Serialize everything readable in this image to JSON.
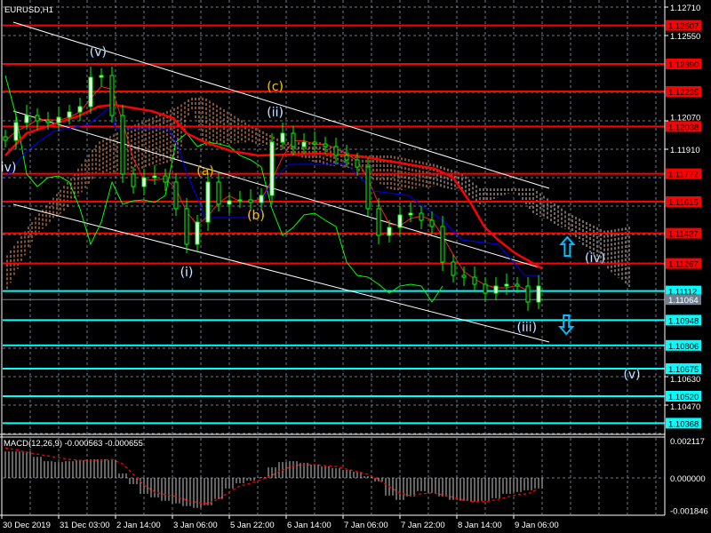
{
  "header": {
    "symbol_title": "EURUSD,H1"
  },
  "macd": {
    "label": "MACD(12,26,9) -0.000563 -0.000655"
  },
  "colors": {
    "background": "#000000",
    "resistance": "#ff0000",
    "support": "#00ffff",
    "current_price": "#708090",
    "bull_candle": "#ffffff",
    "candle_outline": "#00ff00",
    "moving_average": "#ff0000",
    "kijun": "#0000ff",
    "chikou": "#00ff00",
    "cloud": "#ffa060",
    "trendline": "#ffffff",
    "arrow": "#00bfff",
    "wave_white": "#ffffff",
    "wave_yellow": "#ffd700"
  },
  "chart_data": {
    "type": "line",
    "title": "EURUSD,H1",
    "price_axis": {
      "range": [
        1.1031,
        1.1271
      ],
      "ticks": [
        "1.12710",
        "1.12550",
        "1.12070",
        "1.11910",
        "1.10630",
        "1.10470"
      ]
    },
    "time_axis": {
      "ticks": [
        "30 Dec 2019",
        "31 Dec 03:00",
        "2 Jan 14:00",
        "3 Jan 06:00",
        "5 Jan 22:00",
        "6 Jan 14:00",
        "7 Jan 06:00",
        "7 Jan 22:00",
        "8 Jan 14:00",
        "9 Jan 06:00"
      ]
    },
    "grid": true,
    "closes": [
      1.1196,
      1.1206,
      1.121,
      1.1207,
      1.1206,
      1.1209,
      1.1212,
      1.1215,
      1.12315,
      1.12325,
      1.121,
      1.1177,
      1.117,
      1.1175,
      1.1176,
      1.11725,
      1.11575,
      1.11375,
      1.115,
      1.11725,
      1.116,
      1.1162,
      1.11625,
      1.1161,
      1.1165,
      1.1195,
      1.12,
      1.11925,
      1.1195,
      1.1194,
      1.11925,
      1.11875,
      1.1185,
      1.1181,
      1.11575,
      1.11425,
      1.1147,
      1.1154,
      1.1155,
      1.1151,
      1.11475,
      1.11275,
      1.112,
      1.1119,
      1.1115,
      1.111,
      1.1114,
      1.1115,
      1.1114,
      1.1105,
      1.1114
    ],
    "resistance_levels": [
      "1.12607",
      "1.12390",
      "1.12235",
      "1.12038",
      "1.11772",
      "1.11615",
      "1.11437",
      "1.11267"
    ],
    "support_levels": [
      "1.11112",
      "1.10948",
      "1.10806",
      "1.10675",
      "1.10520",
      "1.10368"
    ],
    "current_price": "1.11064",
    "moving_average": [
      [
        0,
        1.11875
      ],
      [
        2,
        1.12
      ],
      [
        4.5,
        1.1205
      ],
      [
        7,
        1.121
      ],
      [
        8.7,
        1.1215
      ],
      [
        10.2,
        1.1216
      ],
      [
        13.7,
        1.12125
      ],
      [
        15.75,
        1.12085
      ],
      [
        17,
        1.12
      ],
      [
        18.7,
        1.1195
      ],
      [
        21.2,
        1.119
      ],
      [
        23.7,
        1.11875
      ],
      [
        26.2,
        1.1188
      ],
      [
        29.5,
        1.11885
      ],
      [
        32.8,
        1.11875
      ],
      [
        35.3,
        1.1185
      ],
      [
        37.8,
        1.11825
      ],
      [
        40.3,
        1.118
      ],
      [
        42,
        1.1175
      ],
      [
        43.7,
        1.116
      ],
      [
        44.9,
        1.11475
      ],
      [
        46.2,
        1.114
      ],
      [
        47.8,
        1.11325
      ],
      [
        50.3,
        1.1124
      ]
    ],
    "kijun": [
      [
        0,
        1.1175
      ],
      [
        2,
        1.119
      ],
      [
        4.5,
        1.1201
      ],
      [
        7.8,
        1.1205
      ],
      [
        9.9,
        1.1215
      ],
      [
        10.3,
        1.12025
      ],
      [
        15.3,
        1.12025
      ],
      [
        16.2,
        1.11925
      ],
      [
        17,
        1.11775
      ],
      [
        18.25,
        1.116
      ],
      [
        18.7,
        1.11525
      ],
      [
        23.7,
        1.11525
      ],
      [
        24.5,
        1.11675
      ],
      [
        25.3,
        1.1175
      ],
      [
        26.6,
        1.11825
      ],
      [
        32,
        1.11825
      ],
      [
        33.7,
        1.11725
      ],
      [
        34.5,
        1.11675
      ],
      [
        37.8,
        1.1165
      ],
      [
        39.5,
        1.11575
      ],
      [
        41.2,
        1.115
      ],
      [
        42.8,
        1.114
      ],
      [
        46.2,
        1.11375
      ],
      [
        48.7,
        1.112
      ],
      [
        50.3,
        1.112
      ]
    ],
    "cloud": [
      [
        0,
        1.113,
        1.111
      ],
      [
        2.8,
        1.11525,
        1.11425
      ],
      [
        6.2,
        1.1175,
        1.116
      ],
      [
        8.7,
        1.1195,
        1.11775
      ],
      [
        11.2,
        1.12025,
        1.11775
      ],
      [
        16.2,
        1.1215,
        1.1185
      ],
      [
        17.4,
        1.122,
        1.1215
      ],
      [
        18.7,
        1.122,
        1.11925
      ],
      [
        22.8,
        1.1205,
        1.1195
      ],
      [
        26.2,
        1.1195,
        1.119
      ],
      [
        29.5,
        1.1195,
        1.11825
      ],
      [
        32.8,
        1.11875,
        1.118
      ],
      [
        36.2,
        1.11875,
        1.11675
      ],
      [
        40.3,
        1.11825,
        1.117
      ],
      [
        42.8,
        1.11775,
        1.11675
      ],
      [
        44.5,
        1.1169,
        1.116
      ],
      [
        47.8,
        1.1169,
        1.11675
      ],
      [
        49.5,
        1.1169,
        1.1155
      ],
      [
        52.8,
        1.1155,
        1.1145
      ],
      [
        56.2,
        1.1145,
        1.1125
      ],
      [
        58.7,
        1.11475,
        1.11125
      ]
    ],
    "trendlines": [
      [
        [
          0.75,
          1.12625
        ],
        [
          51,
          1.1169
        ]
      ],
      [
        [
          0.75,
          1.12125
        ],
        [
          50.3,
          1.1124
        ]
      ],
      [
        [
          0.75,
          1.116
        ],
        [
          51,
          1.10825
        ]
      ]
    ],
    "wave_labels": [
      {
        "text": "(v)",
        "at": [
          8.7,
          1.1246
        ],
        "color": "white"
      },
      {
        "text": "(c)",
        "at": [
          25.3,
          1.12265
        ],
        "color": "yellow"
      },
      {
        "text": "(ii)",
        "at": [
          25.3,
          1.1212
        ],
        "color": "white"
      },
      {
        "text": "iv)",
        "at": [
          0.3,
          1.1181
        ],
        "color": "white"
      },
      {
        "text": "(a)",
        "at": [
          18.75,
          1.1179
        ],
        "color": "yellow"
      },
      {
        "text": "(b)",
        "at": [
          23.5,
          1.1154
        ],
        "color": "yellow"
      },
      {
        "text": "(i)",
        "at": [
          17,
          1.1122
        ],
        "color": "white"
      },
      {
        "text": "(iii)",
        "at": [
          48.9,
          1.1091
        ],
        "color": "white"
      },
      {
        "text": "(iv)",
        "at": [
          55.3,
          1.113
        ],
        "color": "white"
      },
      {
        "text": "(v)",
        "at": [
          58.75,
          1.10645
        ],
        "color": "white"
      }
    ],
    "arrows": [
      {
        "direction": "up",
        "at": [
          52.7,
          1.1136
        ]
      },
      {
        "direction": "down",
        "at": [
          52.6,
          1.10925
        ]
      }
    ],
    "macd": {
      "axis_ticks": [
        "0.002117",
        "0.000000",
        "-0.001846"
      ],
      "range": [
        -0.001846,
        0.002117
      ],
      "histogram": [
        0.0015,
        0.0015,
        0.0015,
        0.0012,
        0.00095,
        0.0009,
        0.00095,
        0.001,
        0.00105,
        0.00105,
        0.001,
        0.00025,
        -0.00035,
        -0.0009,
        -0.0011,
        -0.0013,
        -0.00145,
        -0.0016,
        -0.0017,
        -0.00155,
        -0.0012,
        -0.0006,
        -0.0003,
        -0.00015,
        5e-05,
        0.0006,
        0.0009,
        0.00095,
        0.00085,
        0.00075,
        0.00065,
        0.00055,
        0.00045,
        0.00035,
        0.0001,
        -0.0002,
        -0.001,
        -0.00125,
        -0.00105,
        -0.00075,
        -0.00085,
        -0.00105,
        -0.00125,
        -0.0013,
        -0.00135,
        -0.0013,
        -0.00115,
        -0.0009,
        -0.0008,
        -0.0007,
        -0.0006
      ],
      "signal": [
        0.0017,
        0.0016,
        0.00145,
        0.00135,
        0.00125,
        0.00115,
        0.00105,
        0.001,
        0.001,
        0.001,
        0.00105,
        0.0008,
        0.0002,
        -0.0004,
        -0.0008,
        -0.00095,
        -0.00105,
        -0.00125,
        -0.0014,
        -0.00145,
        -0.0012,
        -0.0008,
        -0.00045,
        -0.0003,
        -0.0001,
        0.00015,
        0.00045,
        0.0007,
        0.00075,
        0.00075,
        0.0007,
        0.00065,
        0.0005,
        0.00035,
        0.0002,
        -0.0001,
        -0.0005,
        -0.00085,
        -0.001,
        -0.0009,
        -0.00085,
        -0.00095,
        -0.0011,
        -0.00125,
        -0.00135,
        -0.00135,
        -0.00125,
        -0.0011,
        -0.00095,
        -0.0009,
        -0.0006
      ]
    }
  }
}
